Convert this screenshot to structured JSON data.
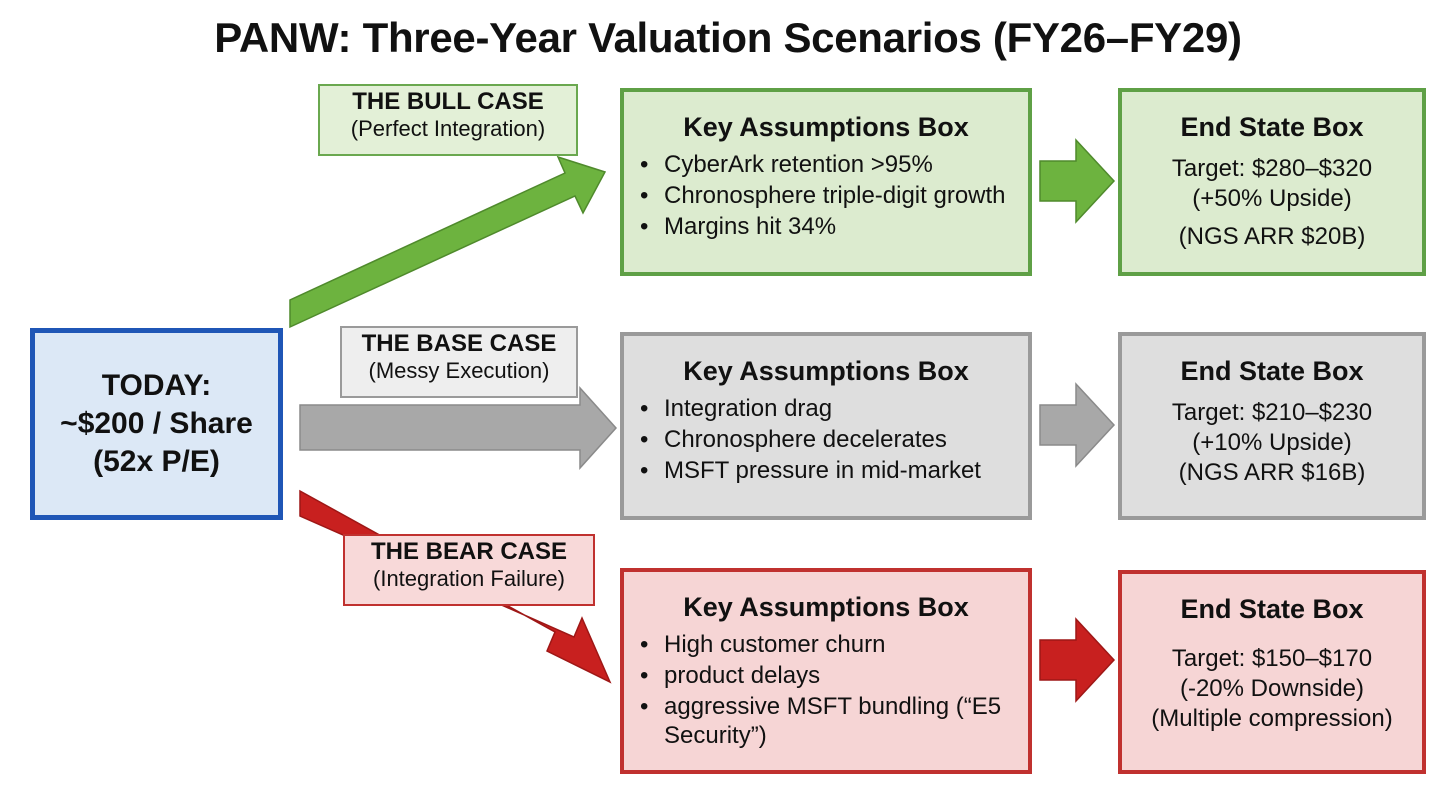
{
  "title": "PANW: Three-Year Valuation Scenarios (FY26–FY29)",
  "colors": {
    "bull_fill": "#dcebcf",
    "bull_border": "#5fa046",
    "bull_arrow": "#6db33f",
    "base_fill": "#dedede",
    "base_border": "#9a9a9a",
    "base_arrow": "#a8a8a8",
    "bear_fill": "#f6d5d5",
    "bear_border": "#c0312f",
    "bear_arrow": "#c8201f",
    "today_fill": "#dce8f6",
    "today_border": "#1f56b6"
  },
  "today": {
    "lines": [
      "TODAY:",
      "~$200 / Share",
      "(52x P/E)"
    ]
  },
  "scenarios": {
    "bull": {
      "case_label": "THE BULL CASE",
      "case_sub": "(Perfect Integration)",
      "assumptions_title": "Key Assumptions Box",
      "assumptions": [
        "CyberArk retention >95%",
        "Chronosphere triple-digit growth",
        "Margins hit 34%"
      ],
      "end_title": "End State Box",
      "end_lines": [
        "Target: $280–$320",
        "(+50% Upside)",
        "(NGS ARR $20B)"
      ]
    },
    "base": {
      "case_label": "THE BASE CASE",
      "case_sub": "(Messy Execution)",
      "assumptions_title": "Key Assumptions Box",
      "assumptions": [
        "Integration drag",
        "Chronosphere decelerates",
        "MSFT pressure in mid-market"
      ],
      "end_title": "End State Box",
      "end_lines": [
        "Target: $210–$230",
        "(+10% Upside)",
        "(NGS ARR $16B)"
      ]
    },
    "bear": {
      "case_label": "THE BEAR CASE",
      "case_sub": "(Integration Failure)",
      "assumptions_title": "Key Assumptions Box",
      "assumptions": [
        "High customer churn",
        "product delays",
        "aggressive MSFT bundling (“E5 Security”)"
      ],
      "end_title": "End State Box",
      "end_lines": [
        "Target: $150–$170",
        "(-20% Downside)",
        "(Multiple compression)"
      ]
    }
  }
}
